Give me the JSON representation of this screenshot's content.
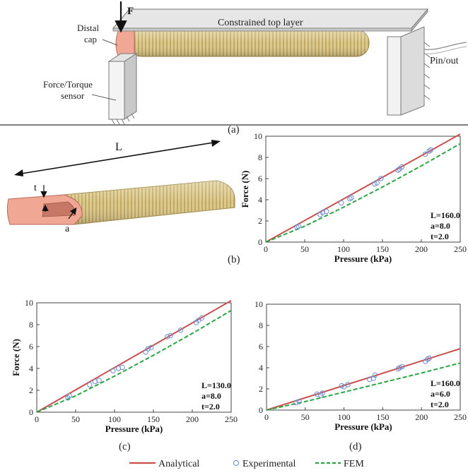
{
  "panel_a": {
    "label_F": "F",
    "label_distal": "Distal",
    "label_cap": "cap",
    "label_top_layer": "Constrained top layer",
    "label_sensor_line1": "Force/Torque",
    "label_sensor_line2": "sensor",
    "label_pin": "Pin/out",
    "caption": "(a)"
  },
  "panel_b_schematic": {
    "label_L": "L",
    "label_t": "t",
    "label_a": "a"
  },
  "captions": {
    "b": "(b)",
    "c": "(c)",
    "d": "(d)"
  },
  "legend": [
    {
      "name": "Analytical",
      "color": "#c9504f",
      "style": "solid"
    },
    {
      "name": "Experimental",
      "color": "#6f8fd0",
      "style": "marker"
    },
    {
      "name": "FEM",
      "color": "#2aa544",
      "style": "dashed"
    }
  ],
  "chart_data": [
    {
      "id": "b",
      "type": "line",
      "xlabel": "Pressure (kPa)",
      "ylabel": "Force (N)",
      "xlim": [
        0,
        250
      ],
      "ylim": [
        0,
        10
      ],
      "xticks": [
        0,
        50,
        100,
        150,
        200,
        250
      ],
      "yticks": [
        0,
        2,
        4,
        6,
        8,
        10
      ],
      "params": [
        "L=160.0",
        "a=8.0",
        "t=2.0"
      ],
      "series": [
        {
          "name": "Analytical",
          "color": "#c9504f",
          "x": [
            0,
            250
          ],
          "y": [
            0,
            10.2
          ]
        },
        {
          "name": "FEM",
          "color": "#2aa544",
          "x": [
            0,
            50,
            100,
            150,
            200,
            250
          ],
          "y": [
            0,
            1.5,
            3.3,
            5.2,
            7.2,
            9.3
          ]
        },
        {
          "name": "Experimental",
          "color": "#6f8fd0",
          "x": [
            40,
            42,
            70,
            73,
            78,
            97,
            108,
            110,
            140,
            143,
            148,
            170,
            172,
            175,
            205,
            210,
            212
          ],
          "y": [
            1.4,
            1.5,
            2.6,
            2.8,
            2.9,
            3.7,
            4.1,
            4.2,
            5.5,
            5.6,
            6.0,
            6.8,
            6.9,
            7.1,
            8.3,
            8.6,
            8.7
          ]
        }
      ]
    },
    {
      "id": "c",
      "type": "line",
      "xlabel": "Pressure (kPa)",
      "ylabel": "Force (N)",
      "xlim": [
        0,
        250
      ],
      "ylim": [
        0,
        10
      ],
      "xticks": [
        0,
        50,
        100,
        150,
        200,
        250
      ],
      "yticks": [
        0,
        2,
        4,
        6,
        8,
        10
      ],
      "params": [
        "L=130.0",
        "a=8.0",
        "t=2.0"
      ],
      "series": [
        {
          "name": "Analytical",
          "color": "#c9504f",
          "x": [
            0,
            250
          ],
          "y": [
            0,
            10.2
          ]
        },
        {
          "name": "FEM",
          "color": "#2aa544",
          "x": [
            0,
            50,
            100,
            150,
            200,
            250
          ],
          "y": [
            0,
            1.5,
            3.3,
            5.2,
            7.2,
            9.3
          ]
        },
        {
          "name": "Experimental",
          "color": "#6f8fd0",
          "x": [
            40,
            42,
            68,
            75,
            80,
            98,
            105,
            110,
            140,
            143,
            147,
            168,
            172,
            185,
            205,
            208,
            212
          ],
          "y": [
            1.3,
            1.5,
            2.5,
            2.8,
            2.9,
            3.8,
            4.0,
            4.1,
            5.5,
            5.8,
            5.9,
            6.9,
            7.0,
            7.5,
            8.2,
            8.4,
            8.6
          ]
        }
      ]
    },
    {
      "id": "d",
      "type": "line",
      "xlabel": "Pressure (kPa)",
      "ylabel": "",
      "xlim": [
        0,
        250
      ],
      "ylim": [
        0,
        10
      ],
      "xticks": [
        0,
        50,
        100,
        150,
        200,
        250
      ],
      "yticks": [
        0,
        2,
        4,
        6,
        8,
        10
      ],
      "params": [
        "L=160.0",
        "a=6.0",
        "t=2.0"
      ],
      "series": [
        {
          "name": "Analytical",
          "color": "#c9504f",
          "x": [
            0,
            250
          ],
          "y": [
            0,
            5.8
          ]
        },
        {
          "name": "FEM",
          "color": "#2aa544",
          "x": [
            0,
            50,
            100,
            150,
            200,
            250
          ],
          "y": [
            0,
            0.8,
            1.7,
            2.6,
            3.5,
            4.45
          ]
        },
        {
          "name": "Experimental",
          "color": "#6f8fd0",
          "x": [
            38,
            42,
            65,
            70,
            72,
            97,
            100,
            105,
            133,
            138,
            140,
            170,
            172,
            175,
            205,
            208,
            210
          ],
          "y": [
            0.7,
            0.8,
            1.5,
            1.4,
            1.6,
            2.3,
            2.2,
            2.4,
            2.9,
            3.0,
            3.3,
            3.9,
            4.0,
            4.1,
            4.6,
            4.8,
            4.9
          ]
        }
      ]
    }
  ]
}
